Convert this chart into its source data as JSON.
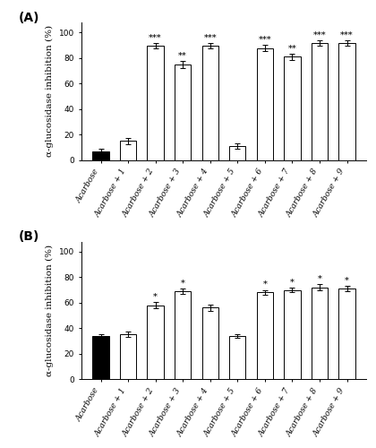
{
  "panel_A": {
    "title": "(A)",
    "categories": [
      "Acarbose",
      "Acarbose + 1",
      "Acarbose + 2",
      "Acarbose + 3",
      "Acarbose + 4",
      "Acarbose + 5",
      "Acarbose + 6",
      "Acarbose + 7",
      "Acarbose + 8",
      "Acarbose + 9"
    ],
    "values": [
      7,
      15,
      90,
      75,
      90,
      11,
      88,
      81,
      92,
      92
    ],
    "errors": [
      1.5,
      2.5,
      2.0,
      2.5,
      2.0,
      2.0,
      2.5,
      2.5,
      2.0,
      2.0
    ],
    "bar_colors": [
      "black",
      "white",
      "white",
      "white",
      "white",
      "white",
      "white",
      "white",
      "white",
      "white"
    ],
    "significance": [
      "",
      "",
      "***",
      "**",
      "***",
      "",
      "***",
      "**",
      "***",
      "***"
    ],
    "ylabel": "α-glucosidase inhibition (%)",
    "ylim": [
      0,
      108
    ],
    "yticks": [
      0,
      20,
      40,
      60,
      80,
      100
    ]
  },
  "panel_B": {
    "title": "(B)",
    "categories": [
      "Acarbose",
      "Acarbose + 1",
      "Acarbose + 2",
      "Acarbose + 3",
      "Acarbose + 4",
      "Acarbose + 5",
      "Acarbose + 6",
      "Acarbose + 7",
      "Acarbose + 8",
      "Acarbose + 9"
    ],
    "values": [
      34,
      35,
      58,
      69,
      56,
      34,
      68,
      70,
      72,
      71
    ],
    "errors": [
      1.5,
      2.0,
      2.5,
      2.0,
      2.5,
      1.5,
      2.0,
      2.0,
      2.5,
      2.0
    ],
    "bar_colors": [
      "black",
      "white",
      "white",
      "white",
      "white",
      "white",
      "white",
      "white",
      "white",
      "white"
    ],
    "significance": [
      "",
      "",
      "*",
      "*",
      "",
      "",
      "*",
      "*",
      "*",
      "*"
    ],
    "ylabel": "α-glucosidase inhibition (%)",
    "ylim": [
      0,
      108
    ],
    "yticks": [
      0,
      20,
      40,
      60,
      80,
      100
    ]
  },
  "bar_width": 0.6,
  "edgecolor": "black",
  "capsize": 2,
  "sig_fontsize": 7,
  "tick_fontsize": 6.5,
  "ylabel_fontsize": 7.5,
  "panel_label_fontsize": 10
}
